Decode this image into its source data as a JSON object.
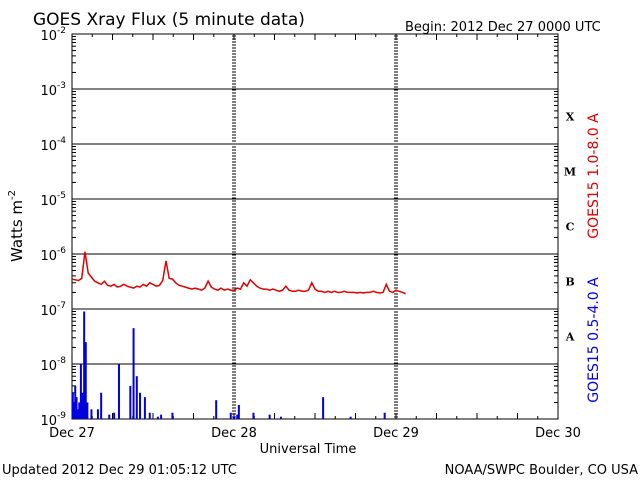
{
  "chart_data": {
    "type": "line",
    "title": "GOES Xray Flux (5 minute data)",
    "begin_label": "Begin:  2012 Dec 27 0000 UTC",
    "xlabel": "Universal Time",
    "ylabel_main": "Watts m",
    "ylabel_sup": "-2",
    "y_scale": "log",
    "ylim": [
      1e-09,
      0.01
    ],
    "y_ticks": [
      {
        "value": 0.01,
        "base": "10",
        "exp": "-2"
      },
      {
        "value": 0.001,
        "base": "10",
        "exp": "-3"
      },
      {
        "value": 0.0001,
        "base": "10",
        "exp": "-4"
      },
      {
        "value": 1e-05,
        "base": "10",
        "exp": "-5"
      },
      {
        "value": 1e-06,
        "base": "10",
        "exp": "-6"
      },
      {
        "value": 1e-07,
        "base": "10",
        "exp": "-7"
      },
      {
        "value": 1e-08,
        "base": "10",
        "exp": "-8"
      },
      {
        "value": 1e-09,
        "base": "10",
        "exp": "-9"
      }
    ],
    "xlim_days": [
      0,
      3
    ],
    "x_ticks": [
      {
        "day": 0,
        "label": "Dec 27"
      },
      {
        "day": 1,
        "label": "Dec 28"
      },
      {
        "day": 2,
        "label": "Dec 29"
      },
      {
        "day": 3,
        "label": "Dec 30"
      }
    ],
    "class_labels": [
      {
        "label": "X",
        "decade": -4
      },
      {
        "label": "M",
        "decade": -5
      },
      {
        "label": "C",
        "decade": -6
      },
      {
        "label": "B",
        "decade": -7
      },
      {
        "label": "A",
        "decade": -8
      }
    ],
    "grid": true,
    "series": [
      {
        "name": "GOES15 1.0-8.0 A",
        "color": "#e00000",
        "x": [
          0.0,
          0.02,
          0.04,
          0.06,
          0.08,
          0.09,
          0.1,
          0.12,
          0.14,
          0.16,
          0.18,
          0.2,
          0.22,
          0.24,
          0.26,
          0.28,
          0.3,
          0.32,
          0.34,
          0.36,
          0.38,
          0.4,
          0.42,
          0.44,
          0.46,
          0.48,
          0.5,
          0.52,
          0.54,
          0.56,
          0.58,
          0.6,
          0.62,
          0.64,
          0.66,
          0.68,
          0.7,
          0.72,
          0.74,
          0.76,
          0.78,
          0.8,
          0.82,
          0.84,
          0.86,
          0.88,
          0.9,
          0.92,
          0.94,
          0.96,
          0.98,
          1.0,
          1.02,
          1.04,
          1.06,
          1.08,
          1.1,
          1.12,
          1.14,
          1.16,
          1.18,
          1.2,
          1.22,
          1.24,
          1.26,
          1.28,
          1.3,
          1.32,
          1.34,
          1.36,
          1.38,
          1.4,
          1.42,
          1.44,
          1.46,
          1.48,
          1.5,
          1.52,
          1.54,
          1.56,
          1.58,
          1.6,
          1.62,
          1.64,
          1.66,
          1.68,
          1.7,
          1.72,
          1.74,
          1.76,
          1.78,
          1.8,
          1.82,
          1.84,
          1.86,
          1.88,
          1.9,
          1.92,
          1.94,
          1.96,
          1.98,
          2.0,
          2.02,
          2.04,
          2.06
        ],
        "values": [
          3.5e-07,
          3.4e-07,
          3.3e-07,
          3.6e-07,
          1.1e-06,
          7e-07,
          4.5e-07,
          3.8e-07,
          3.2e-07,
          3e-07,
          2.8e-07,
          3.2e-07,
          2.7e-07,
          2.6e-07,
          2.8e-07,
          2.5e-07,
          2.6e-07,
          2.8e-07,
          2.6e-07,
          2.5e-07,
          2.4e-07,
          2.6e-07,
          2.5e-07,
          2.8e-07,
          2.6e-07,
          3e-07,
          2.8e-07,
          2.6e-07,
          2.7e-07,
          3.3e-07,
          7.5e-07,
          3.6e-07,
          3.5e-07,
          3e-07,
          2.7e-07,
          2.6e-07,
          2.5e-07,
          2.4e-07,
          2.3e-07,
          2.4e-07,
          2.3e-07,
          2.2e-07,
          2.4e-07,
          3.2e-07,
          2.5e-07,
          2.3e-07,
          2.2e-07,
          2.4e-07,
          2.2e-07,
          2.3e-07,
          2.2e-07,
          2.2e-07,
          2.4e-07,
          2.3e-07,
          3e-07,
          2.6e-07,
          3.4e-07,
          3e-07,
          2.6e-07,
          2.4e-07,
          2.3e-07,
          2.3e-07,
          2.2e-07,
          2.3e-07,
          2.2e-07,
          2.1e-07,
          2.2e-07,
          2.6e-07,
          2.2e-07,
          2.1e-07,
          2.1e-07,
          2.2e-07,
          2.1e-07,
          2.1e-07,
          2.2e-07,
          3e-07,
          2.3e-07,
          2.1e-07,
          2.1e-07,
          2e-07,
          2.1e-07,
          2e-07,
          2.1e-07,
          2e-07,
          2e-07,
          2.1e-07,
          2e-07,
          2e-07,
          2e-07,
          1.95e-07,
          2e-07,
          1.95e-07,
          2e-07,
          2e-07,
          2.1e-07,
          2e-07,
          1.95e-07,
          2e-07,
          2.8e-07,
          2.1e-07,
          2e-07,
          2.2e-07,
          2.1e-07,
          2e-07,
          1.9e-07
        ]
      },
      {
        "name": "GOES15 0.5-4.0 A",
        "color": "#0000e0",
        "baseline": 1e-09,
        "spikes": [
          {
            "x": 0.005,
            "v": 3e-09
          },
          {
            "x": 0.012,
            "v": 2e-09
          },
          {
            "x": 0.02,
            "v": 4e-09
          },
          {
            "x": 0.028,
            "v": 2.5e-09
          },
          {
            "x": 0.035,
            "v": 1.5e-09
          },
          {
            "x": 0.045,
            "v": 2e-09
          },
          {
            "x": 0.055,
            "v": 1e-08
          },
          {
            "x": 0.065,
            "v": 3e-09
          },
          {
            "x": 0.075,
            "v": 9e-08
          },
          {
            "x": 0.085,
            "v": 2.5e-08
          },
          {
            "x": 0.095,
            "v": 2e-09
          },
          {
            "x": 0.12,
            "v": 1.5e-09
          },
          {
            "x": 0.16,
            "v": 1.5e-09
          },
          {
            "x": 0.18,
            "v": 3e-09
          },
          {
            "x": 0.23,
            "v": 1.2e-09
          },
          {
            "x": 0.26,
            "v": 1.3e-09
          },
          {
            "x": 0.29,
            "v": 1e-08
          },
          {
            "x": 0.36,
            "v": 4e-09
          },
          {
            "x": 0.38,
            "v": 4.5e-08
          },
          {
            "x": 0.4,
            "v": 6e-09
          },
          {
            "x": 0.42,
            "v": 3e-09
          },
          {
            "x": 0.45,
            "v": 2.5e-09
          },
          {
            "x": 0.48,
            "v": 1.3e-09
          },
          {
            "x": 0.53,
            "v": 1.1e-09
          },
          {
            "x": 0.55,
            "v": 1.2e-09
          },
          {
            "x": 0.62,
            "v": 1.3e-09
          },
          {
            "x": 1.0,
            "v": 1.1e-09
          },
          {
            "x": 1.02,
            "v": 1.2e-09
          },
          {
            "x": 1.0,
            "v": 1.1e-09
          },
          {
            "x": 1.22,
            "v": 1.2e-09
          },
          {
            "x": 1.12,
            "v": 1.3e-09
          },
          {
            "x": 1.03,
            "v": 1.8e-09
          },
          {
            "x": 0.89,
            "v": 2.2e-09
          },
          {
            "x": 0.98,
            "v": 1.3e-09
          },
          {
            "x": 1.29,
            "v": 1.1e-09
          },
          {
            "x": 1.55,
            "v": 2.5e-09
          },
          {
            "x": 1.72,
            "v": 1.1e-09
          },
          {
            "x": 1.93,
            "v": 1.3e-09
          }
        ]
      }
    ]
  },
  "footer": {
    "updated": "Updated 2012 Dec 29 01:05:12 UTC",
    "source": "NOAA/SWPC Boulder, CO USA"
  }
}
